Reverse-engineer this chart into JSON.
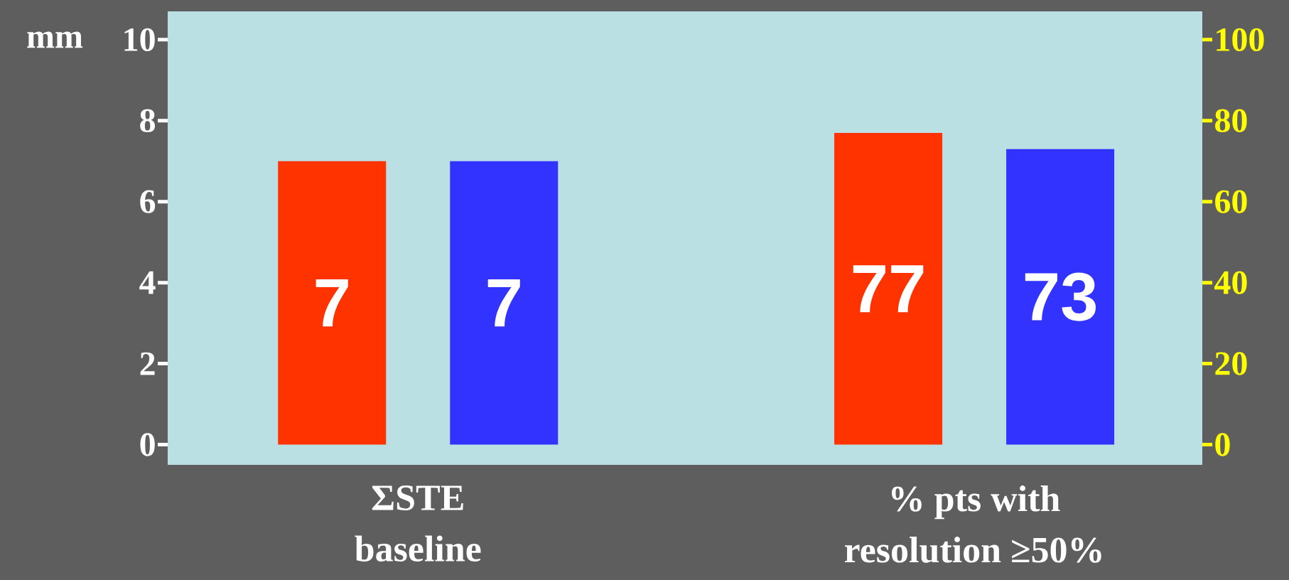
{
  "chart_data": {
    "type": "bar",
    "ylabel": "mm",
    "categories": [
      "ΣSTE baseline",
      "% pts with resolution ≥50%"
    ],
    "series": [
      {
        "color": "#ff3300",
        "values": [
          7,
          null
        ]
      },
      {
        "color": "#3333ff",
        "values": [
          7,
          null
        ]
      },
      {
        "color": "#ff3300",
        "values": [
          null,
          77
        ],
        "axis": "y2"
      },
      {
        "color": "#3333ff",
        "values": [
          null,
          73
        ],
        "axis": "y2"
      }
    ],
    "ylim": [
      -0.5,
      10.7
    ],
    "yticks": [
      0,
      2,
      4,
      6,
      8,
      10
    ],
    "y2lim": [
      -5,
      107
    ],
    "y2ticks": [
      0,
      20,
      40,
      60,
      80,
      100
    ],
    "data_labels": true
  }
}
